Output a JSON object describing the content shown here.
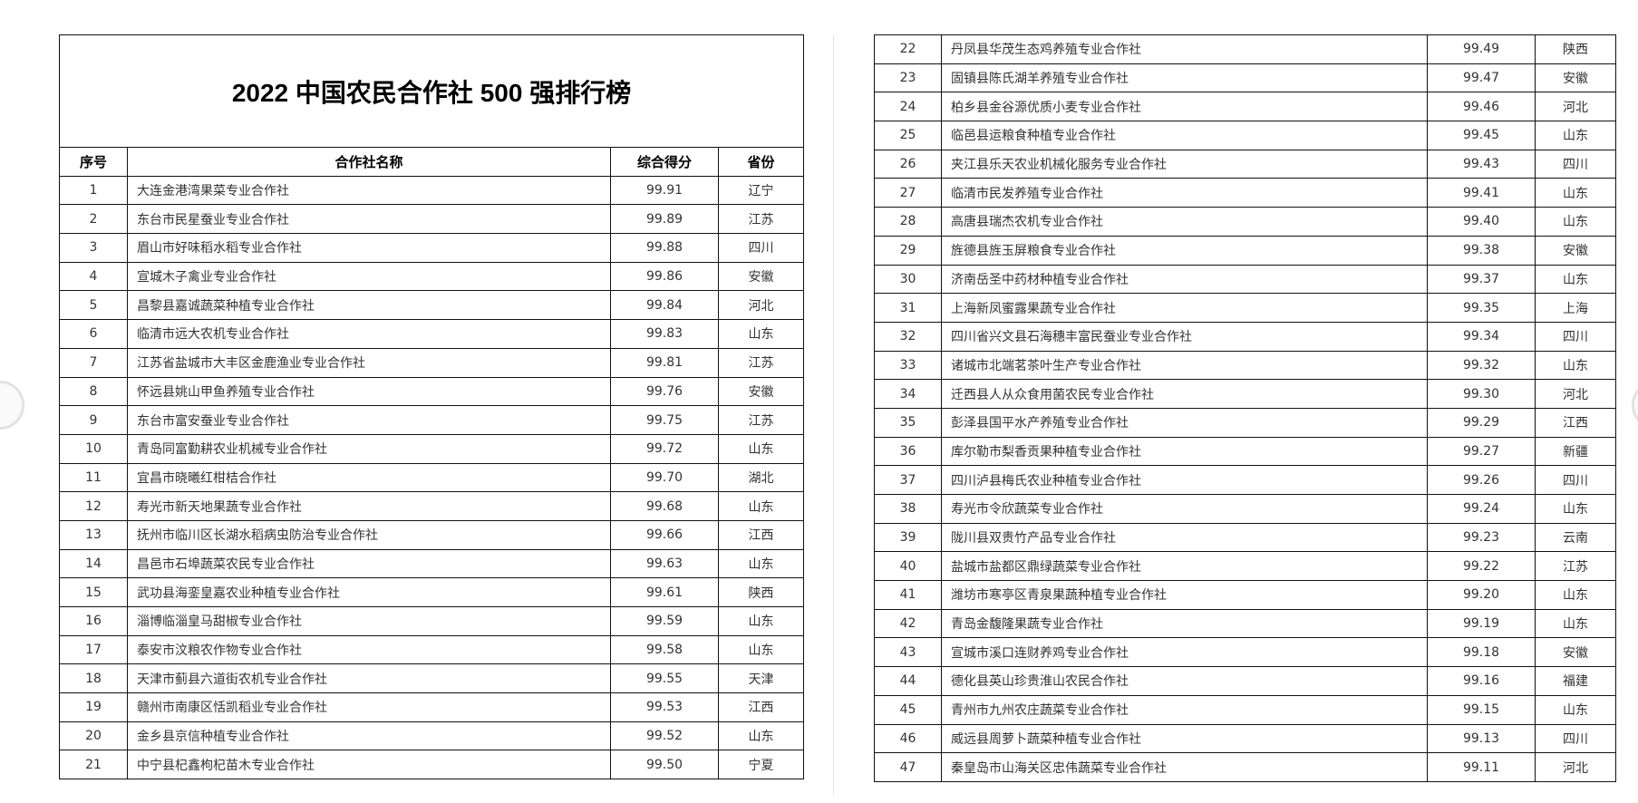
{
  "title": "2022 中国农民合作社 500 强排行榜",
  "headers": [
    "序号",
    "合作社名称",
    "综合得分",
    "省份"
  ],
  "rows_left": [
    [
      "1",
      "大连金港湾果菜专业合作社",
      "99.91",
      "辽宁"
    ],
    [
      "2",
      "东台市民星蚕业专业合作社",
      "99.89",
      "江苏"
    ],
    [
      "3",
      "眉山市好味稻水稻专业合作社",
      "99.88",
      "四川"
    ],
    [
      "4",
      "宣城木子禽业专业合作社",
      "99.86",
      "安徽"
    ],
    [
      "5",
      "昌黎县嘉诚蔬菜种植专业合作社",
      "99.84",
      "河北"
    ],
    [
      "6",
      "临清市远大农机专业合作社",
      "99.83",
      "山东"
    ],
    [
      "7",
      "江苏省盐城市大丰区金鹿渔业专业合作社",
      "99.81",
      "江苏"
    ],
    [
      "8",
      "怀远县姚山甲鱼养殖专业合作社",
      "99.76",
      "安徽"
    ],
    [
      "9",
      "东台市富安蚕业专业合作社",
      "99.75",
      "江苏"
    ],
    [
      "10",
      "青岛同富勤耕农业机械专业合作社",
      "99.72",
      "山东"
    ],
    [
      "11",
      "宜昌市晓曦红柑桔合作社",
      "99.70",
      "湖北"
    ],
    [
      "12",
      "寿光市新天地果蔬专业合作社",
      "99.68",
      "山东"
    ],
    [
      "13",
      "抚州市临川区长湖水稻病虫防治专业合作社",
      "99.66",
      "江西"
    ],
    [
      "14",
      "昌邑市石埠蔬菜农民专业合作社",
      "99.63",
      "山东"
    ],
    [
      "15",
      "武功县海銮皇嘉农业种植专业合作社",
      "99.61",
      "陕西"
    ],
    [
      "16",
      "淄博临淄皇马甜椒专业合作社",
      "99.59",
      "山东"
    ],
    [
      "17",
      "泰安市汶粮农作物专业合作社",
      "99.58",
      "山东"
    ],
    [
      "18",
      "天津市蓟县六道街农机专业合作社",
      "99.55",
      "天津"
    ],
    [
      "19",
      "赣州市南康区恬凯稻业专业合作社",
      "99.53",
      "江西"
    ],
    [
      "20",
      "金乡县京信种植专业合作社",
      "99.52",
      "山东"
    ],
    [
      "21",
      "中宁县杞鑫枸杞苗木专业合作社",
      "99.50",
      "宁夏"
    ]
  ],
  "rows_right": [
    [
      "22",
      "丹凤县华茂生态鸡养殖专业合作社",
      "99.49",
      "陕西"
    ],
    [
      "23",
      "固镇县陈氏湖羊养殖专业合作社",
      "99.47",
      "安徽"
    ],
    [
      "24",
      "柏乡县金谷源优质小麦专业合作社",
      "99.46",
      "河北"
    ],
    [
      "25",
      "临邑县运粮食种植专业合作社",
      "99.45",
      "山东"
    ],
    [
      "26",
      "夹江县乐天农业机械化服务专业合作社",
      "99.43",
      "四川"
    ],
    [
      "27",
      "临清市民发养殖专业合作社",
      "99.41",
      "山东"
    ],
    [
      "28",
      "高唐县瑞杰农机专业合作社",
      "99.40",
      "山东"
    ],
    [
      "29",
      "旌德县旌玉屏粮食专业合作社",
      "99.38",
      "安徽"
    ],
    [
      "30",
      "济南岳圣中药材种植专业合作社",
      "99.37",
      "山东"
    ],
    [
      "31",
      "上海新凤蜜露果蔬专业合作社",
      "99.35",
      "上海"
    ],
    [
      "32",
      "四川省兴文县石海穗丰富民蚕业专业合作社",
      "99.34",
      "四川"
    ],
    [
      "33",
      "诸城市北端茗茶叶生产专业合作社",
      "99.32",
      "山东"
    ],
    [
      "34",
      "迁西县人从众食用菌农民专业合作社",
      "99.30",
      "河北"
    ],
    [
      "35",
      "彭泽县国平水产养殖专业合作社",
      "99.29",
      "江西"
    ],
    [
      "36",
      "库尔勒市梨香贡果种植专业合作社",
      "99.27",
      "新疆"
    ],
    [
      "37",
      "四川泸县梅氏农业种植专业合作社",
      "99.26",
      "四川"
    ],
    [
      "38",
      "寿光市令欣蔬菜专业合作社",
      "99.24",
      "山东"
    ],
    [
      "39",
      "陇川县双贵竹产品专业合作社",
      "99.23",
      "云南"
    ],
    [
      "40",
      "盐城市盐都区鼎绿蔬菜专业合作社",
      "99.22",
      "江苏"
    ],
    [
      "41",
      "潍坊市寒亭区青泉果蔬种植专业合作社",
      "99.20",
      "山东"
    ],
    [
      "42",
      "青岛金馥隆果蔬专业合作社",
      "99.19",
      "山东"
    ],
    [
      "43",
      "宣城市溪口连财养鸡专业合作社",
      "99.18",
      "安徽"
    ],
    [
      "44",
      "德化县英山珍贵淮山农民合作社",
      "99.16",
      "福建"
    ],
    [
      "45",
      "青州市九州农庄蔬菜专业合作社",
      "99.15",
      "山东"
    ],
    [
      "46",
      "威远县周萝卜蔬菜种植专业合作社",
      "99.13",
      "四川"
    ],
    [
      "47",
      "秦皇岛市山海关区忠伟蔬菜专业合作社",
      "99.11",
      "河北"
    ]
  ],
  "icons": {
    "prev": "previous-page-icon",
    "next": "next-page-icon"
  }
}
